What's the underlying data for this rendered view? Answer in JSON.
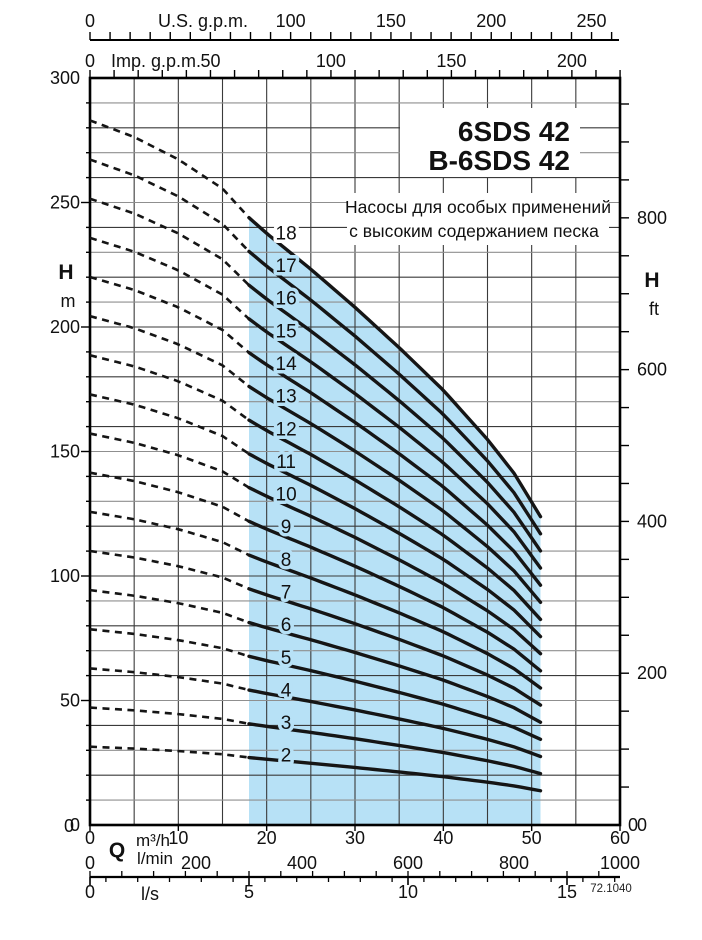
{
  "page": {
    "background": "#ffffff"
  },
  "chart_data": {
    "type": "line",
    "title_lines": [
      "6SDS 42",
      "B-6SDS 42"
    ],
    "annotation_lines": [
      "Насосы для особых применений",
      "с высоким содержанием песка"
    ],
    "code_label": "72.1040",
    "axes": {
      "top_us_gpm": {
        "title": "U.S. g.p.m.",
        "unit_to_m3h": 0.22712,
        "tick_step": 10,
        "tick_max": 260,
        "labeled_ticks": [
          0,
          100,
          150,
          200,
          250
        ]
      },
      "top_imp_gpm": {
        "title": "Imp. g.p.m.",
        "unit_to_m3h": 0.27276,
        "tick_step": 10,
        "tick_max": 220,
        "labeled_ticks": [
          0,
          50,
          100,
          150,
          200
        ]
      },
      "left_head_m": {
        "title": "H",
        "unit": "m",
        "min": 0,
        "max": 300,
        "grid_step": 10,
        "labeled_ticks": [
          300,
          250,
          200,
          150,
          100,
          50,
          0
        ]
      },
      "right_head_ft": {
        "title": "H",
        "unit": "ft",
        "unit_to_m": 0.3048,
        "tick_step": 50,
        "tick_max": 950,
        "labeled_ticks": [
          800,
          600,
          400,
          200,
          0
        ]
      },
      "bottom_flow": {
        "title": "Q",
        "flow_range_m3h": [
          0,
          60
        ],
        "rows": [
          {
            "unit": "m³/h",
            "unit_to_m3h": 1.0,
            "labeled_ticks": [
              0,
              10,
              20,
              30,
              40,
              50,
              60
            ]
          },
          {
            "unit": "l/min",
            "unit_to_m3h": 0.06,
            "labeled_ticks": [
              0,
              200,
              400,
              600,
              800,
              1000
            ]
          },
          {
            "unit": "l/s",
            "unit_to_m3h": 3.6,
            "labeled_ticks": [
              0,
              5,
              10,
              15
            ],
            "minor_step": 0.5,
            "tick_max": 16.5
          }
        ]
      }
    },
    "grid": {
      "x_step_m3h": 5,
      "y_step_m": 10
    },
    "operating_region": {
      "q_min_m3h": 18,
      "q_max_m3h": 51
    },
    "stages": [
      2,
      3,
      4,
      5,
      6,
      7,
      8,
      9,
      10,
      11,
      12,
      13,
      14,
      15,
      16,
      17,
      18
    ],
    "per_stage_head": {
      "q_m3h": [
        0,
        5,
        10,
        15,
        18,
        20,
        25,
        30,
        35,
        40,
        45,
        48,
        51
      ],
      "head_m": [
        15.72,
        15.35,
        14.85,
        14.2,
        13.55,
        13.2,
        12.4,
        11.55,
        10.65,
        9.7,
        8.6,
        7.85,
        6.88
      ]
    },
    "curve_style": {
      "dashed_range_q": [
        0,
        18
      ],
      "solid_range_q": [
        18,
        51
      ]
    },
    "series": [
      {
        "stage": 2,
        "q_m3h": [
          0,
          18,
          30,
          40,
          51
        ],
        "head_m": [
          31.4,
          27.1,
          23.1,
          19.4,
          13.8
        ]
      },
      {
        "stage": 3,
        "q_m3h": [
          0,
          18,
          30,
          40,
          51
        ],
        "head_m": [
          47.2,
          40.7,
          34.7,
          29.1,
          20.6
        ]
      },
      {
        "stage": 4,
        "q_m3h": [
          0,
          18,
          30,
          40,
          51
        ],
        "head_m": [
          62.9,
          54.2,
          46.2,
          38.8,
          27.5
        ]
      },
      {
        "stage": 5,
        "q_m3h": [
          0,
          18,
          30,
          40,
          51
        ],
        "head_m": [
          78.6,
          67.8,
          57.8,
          48.5,
          34.4
        ]
      },
      {
        "stage": 6,
        "q_m3h": [
          0,
          18,
          30,
          40,
          51
        ],
        "head_m": [
          94.3,
          81.3,
          69.3,
          58.2,
          41.3
        ]
      },
      {
        "stage": 7,
        "q_m3h": [
          0,
          18,
          30,
          40,
          51
        ],
        "head_m": [
          110.0,
          94.9,
          80.9,
          67.9,
          48.2
        ]
      },
      {
        "stage": 8,
        "q_m3h": [
          0,
          18,
          30,
          40,
          51
        ],
        "head_m": [
          125.8,
          108.4,
          92.4,
          77.6,
          55.0
        ]
      },
      {
        "stage": 9,
        "q_m3h": [
          0,
          18,
          30,
          40,
          51
        ],
        "head_m": [
          141.5,
          122.0,
          104.0,
          87.3,
          61.9
        ]
      },
      {
        "stage": 10,
        "q_m3h": [
          0,
          18,
          30,
          40,
          51
        ],
        "head_m": [
          157.2,
          135.5,
          115.5,
          97.0,
          68.8
        ]
      },
      {
        "stage": 11,
        "q_m3h": [
          0,
          18,
          30,
          40,
          51
        ],
        "head_m": [
          172.9,
          149.1,
          127.1,
          106.7,
          75.7
        ]
      },
      {
        "stage": 12,
        "q_m3h": [
          0,
          18,
          30,
          40,
          51
        ],
        "head_m": [
          188.6,
          162.6,
          138.6,
          116.4,
          82.6
        ]
      },
      {
        "stage": 13,
        "q_m3h": [
          0,
          18,
          30,
          40,
          51
        ],
        "head_m": [
          204.4,
          176.2,
          150.2,
          126.1,
          89.4
        ]
      },
      {
        "stage": 14,
        "q_m3h": [
          0,
          18,
          30,
          40,
          51
        ],
        "head_m": [
          220.1,
          189.7,
          161.7,
          135.8,
          96.3
        ]
      },
      {
        "stage": 15,
        "q_m3h": [
          0,
          18,
          30,
          40,
          51
        ],
        "head_m": [
          235.8,
          203.3,
          173.3,
          145.5,
          103.2
        ]
      },
      {
        "stage": 16,
        "q_m3h": [
          0,
          18,
          30,
          40,
          51
        ],
        "head_m": [
          251.5,
          216.8,
          184.8,
          155.2,
          110.1
        ]
      },
      {
        "stage": 17,
        "q_m3h": [
          0,
          18,
          30,
          40,
          51
        ],
        "head_m": [
          267.2,
          230.4,
          196.4,
          164.9,
          117.0
        ]
      },
      {
        "stage": 18,
        "q_m3h": [
          0,
          18,
          30,
          40,
          51
        ],
        "head_m": [
          282.9,
          243.9,
          207.9,
          174.6,
          123.8
        ]
      }
    ],
    "colors": {
      "region_fill": "#b7e1f6",
      "curve": "#151515",
      "grid_minor": "#8f8f8f",
      "grid_major": "#3a3a3a",
      "frame": "#000000",
      "text": "#111111"
    }
  }
}
